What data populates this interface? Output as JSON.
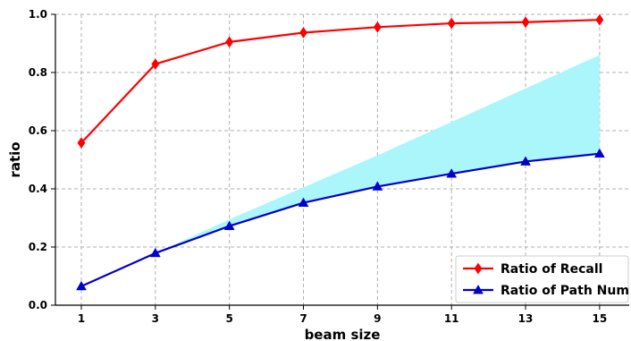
{
  "chart_data": {
    "type": "line",
    "x": [
      1,
      3,
      5,
      7,
      9,
      11,
      13,
      15
    ],
    "xlabel": "beam size",
    "ylabel": "ratio",
    "xlim": [
      0.3,
      15.8
    ],
    "ylim": [
      0.0,
      1.0
    ],
    "xticks": [
      "1",
      "3",
      "5",
      "7",
      "9",
      "11",
      "13",
      "15"
    ],
    "yticks": [
      "0.0",
      "0.2",
      "0.4",
      "0.6",
      "0.8",
      "1.0"
    ],
    "grid": true,
    "legend_position": "bottom-right",
    "series": [
      {
        "name": "Ratio of Recall",
        "color": "#ff0000",
        "marker": "diamond",
        "values": [
          0.558,
          0.829,
          0.905,
          0.937,
          0.956,
          0.969,
          0.973,
          0.981
        ]
      },
      {
        "name": "Ratio of Path Num",
        "color": "#0000cc",
        "marker": "triangle",
        "values": [
          0.065,
          0.179,
          0.272,
          0.352,
          0.408,
          0.452,
          0.494,
          0.521
        ]
      }
    ],
    "shaded_band": {
      "color": "#aaf6fa",
      "x": [
        1,
        3,
        5,
        7,
        9,
        11,
        13,
        15
      ],
      "lower": [
        0.065,
        0.179,
        0.272,
        0.352,
        0.408,
        0.452,
        0.494,
        0.521
      ],
      "upper": [
        0.065,
        0.179,
        0.295,
        0.405,
        0.515,
        0.63,
        0.745,
        0.86
      ]
    }
  }
}
